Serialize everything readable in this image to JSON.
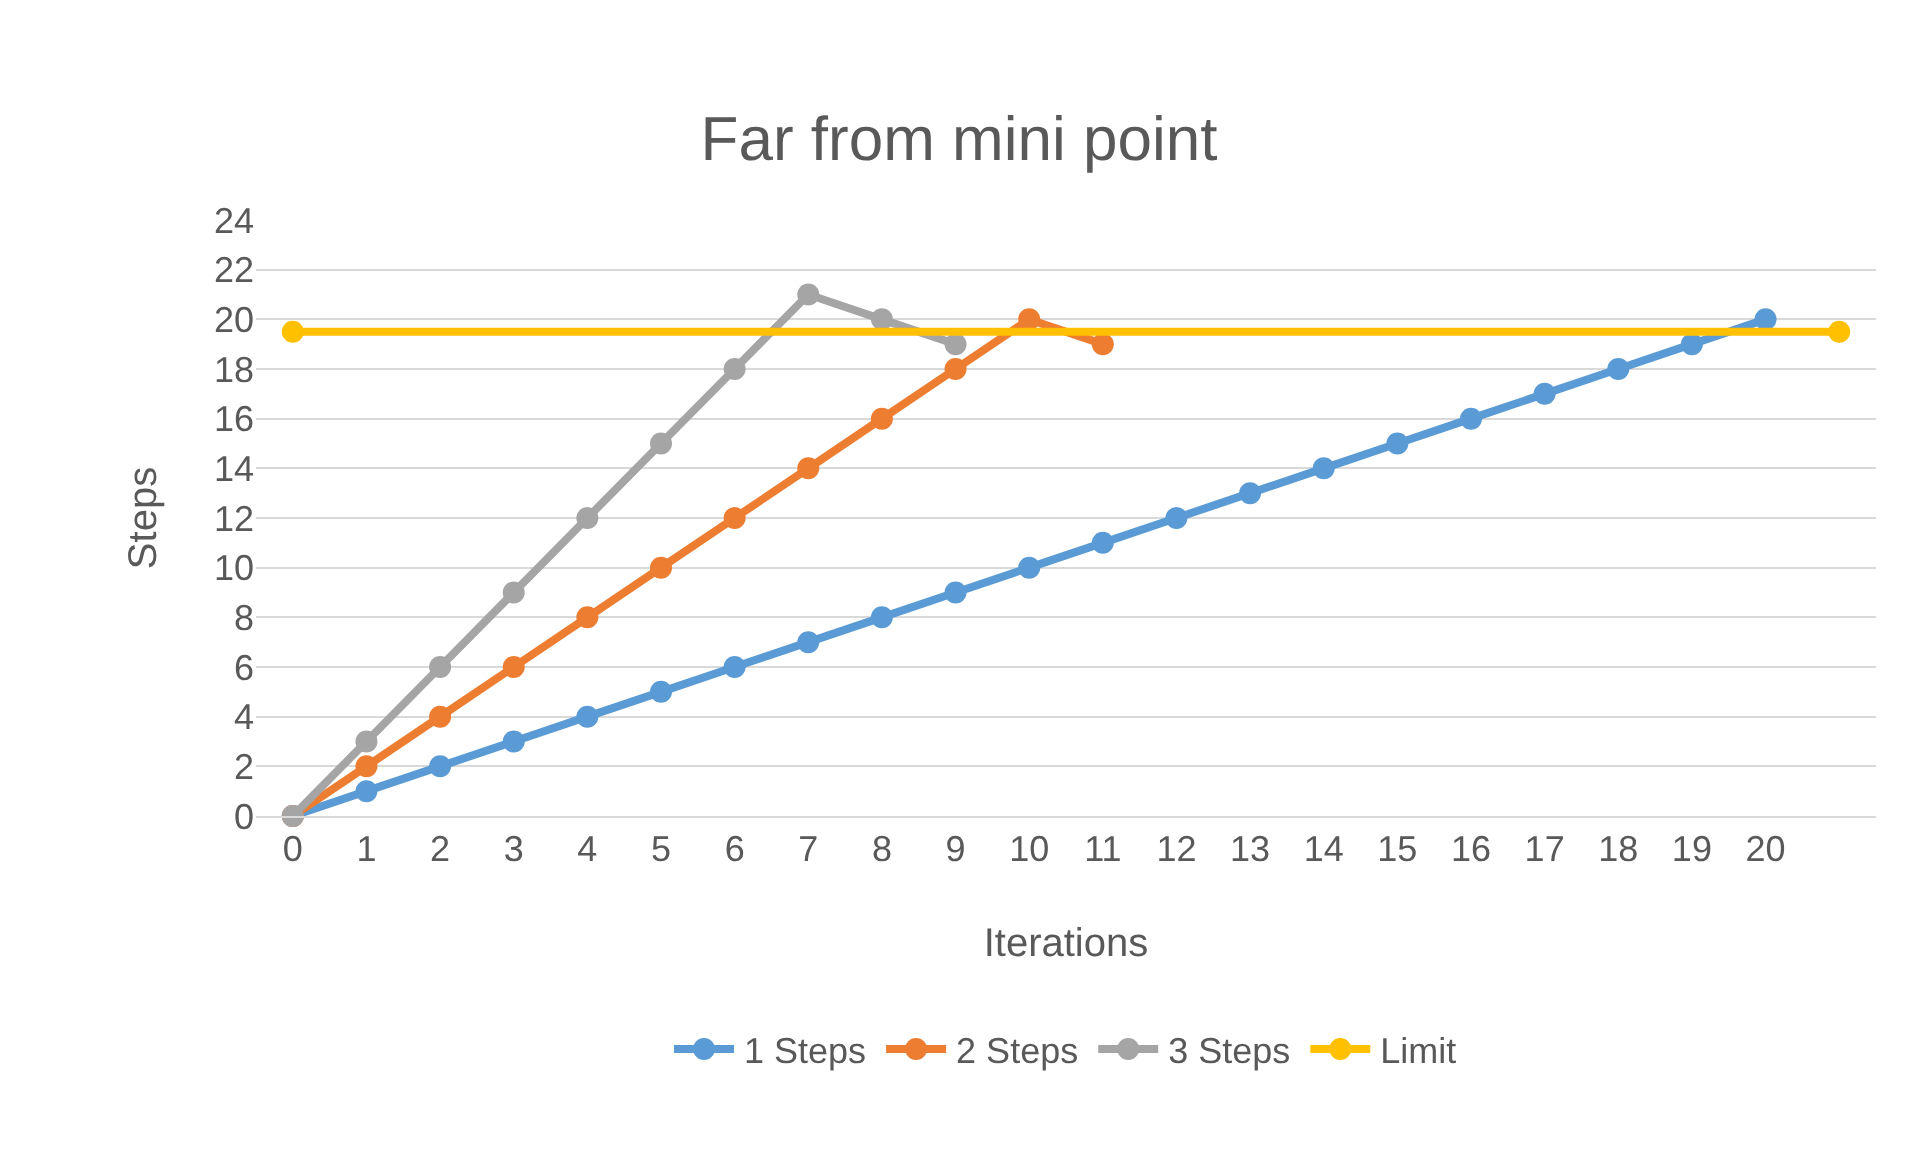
{
  "chart_data": {
    "type": "line",
    "title": "Far from mini point",
    "xlabel": "Iterations",
    "ylabel": "Steps",
    "xlim": [
      -0.5,
      21.5
    ],
    "xticks": [
      0,
      1,
      2,
      3,
      4,
      5,
      6,
      7,
      8,
      9,
      10,
      11,
      12,
      13,
      14,
      15,
      16,
      17,
      18,
      19,
      20
    ],
    "ylim": [
      0,
      24
    ],
    "yticks": [
      0,
      2,
      4,
      6,
      8,
      10,
      12,
      14,
      16,
      18,
      20,
      22,
      24
    ],
    "grid": "y",
    "legend": "bottom",
    "marker": "circle",
    "line_style": "solid",
    "series": [
      {
        "name": "1 Steps",
        "color": "#5b9bd5",
        "x": [
          0,
          1,
          2,
          3,
          4,
          5,
          6,
          7,
          8,
          9,
          10,
          11,
          12,
          13,
          14,
          15,
          16,
          17,
          18,
          19,
          20
        ],
        "values": [
          0,
          1,
          2,
          3,
          4,
          5,
          6,
          7,
          8,
          9,
          10,
          11,
          12,
          13,
          14,
          15,
          16,
          17,
          18,
          19,
          20
        ]
      },
      {
        "name": "2 Steps",
        "color": "#ed7d31",
        "x": [
          0,
          1,
          2,
          3,
          4,
          5,
          6,
          7,
          8,
          9,
          10,
          11
        ],
        "values": [
          0,
          2,
          4,
          6,
          8,
          10,
          12,
          14,
          16,
          18,
          20,
          19
        ]
      },
      {
        "name": "3 Steps",
        "color": "#a5a5a5",
        "x": [
          0,
          1,
          2,
          3,
          4,
          5,
          6,
          7,
          8,
          9
        ],
        "values": [
          0,
          3,
          6,
          9,
          12,
          15,
          18,
          21,
          20,
          19
        ]
      },
      {
        "name": "Limit",
        "color": "#ffc000",
        "x": [
          0,
          21
        ],
        "values": [
          19.5,
          19.5
        ]
      }
    ]
  }
}
